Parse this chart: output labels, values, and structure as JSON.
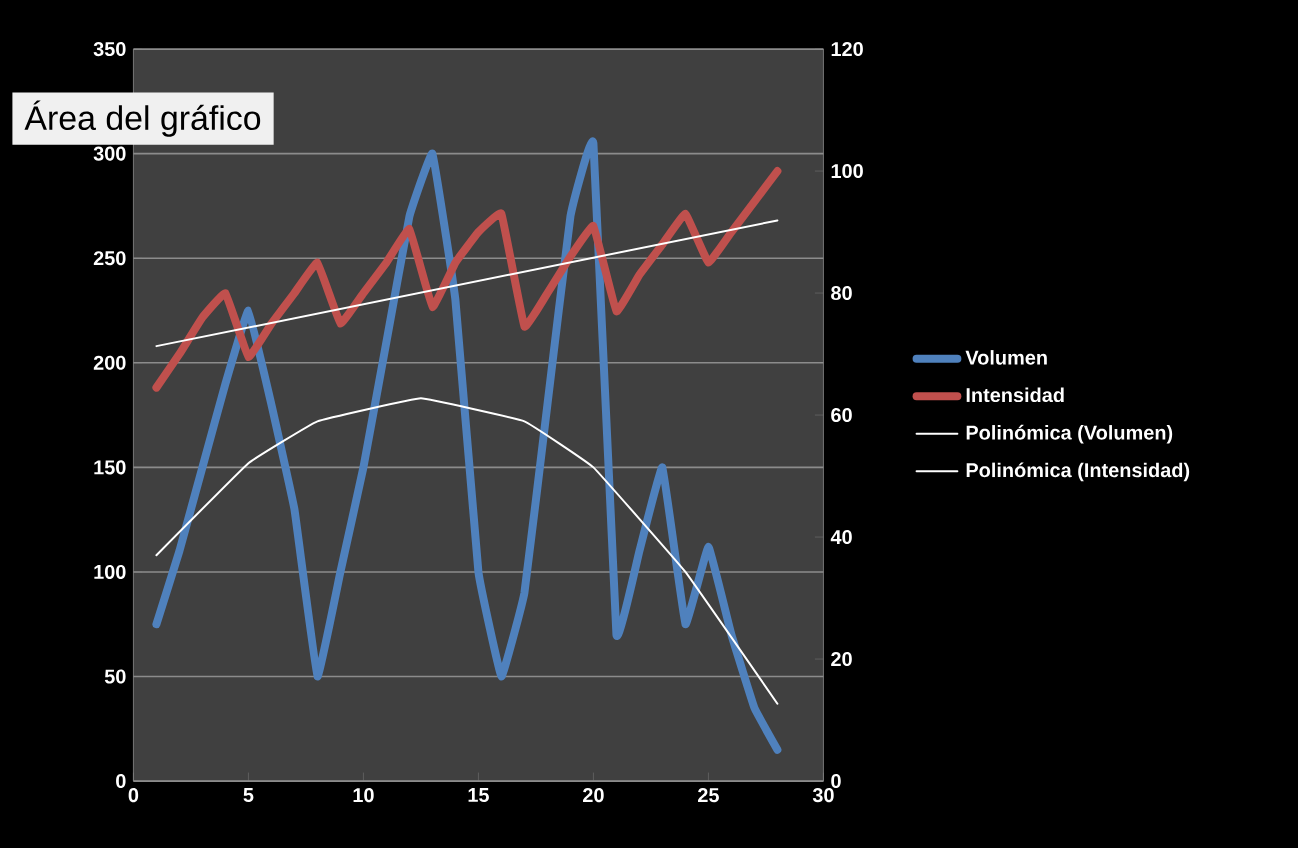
{
  "chart_data": {
    "type": "line",
    "x": [
      1,
      2,
      3,
      4,
      5,
      6,
      7,
      8,
      9,
      10,
      11,
      12,
      13,
      14,
      15,
      16,
      17,
      18,
      19,
      20,
      21,
      22,
      23,
      24,
      25,
      26,
      27,
      28
    ],
    "series": [
      {
        "name": "Volumen",
        "color": "#4f81bd",
        "values": [
          75,
          110,
          150,
          190,
          225,
          180,
          130,
          50,
          100,
          150,
          210,
          270,
          300,
          230,
          100,
          50,
          90,
          180,
          270,
          305,
          70,
          110,
          150,
          75,
          112,
          70,
          35,
          15
        ]
      },
      {
        "name": "Intensidad",
        "color": "#c0504d",
        "axis": "y2",
        "values": [
          64.5,
          70,
          76,
          80,
          69.5,
          75,
          80,
          85,
          75,
          80,
          85,
          90.5,
          77.7,
          85,
          90,
          93,
          74.5,
          80,
          86,
          91,
          77,
          83,
          88,
          93,
          85,
          90,
          95,
          100
        ]
      },
      {
        "name": "Polinómica  (Volumen)",
        "color": "#ffffff",
        "x": [
          1,
          5,
          8,
          12.5,
          17,
          20,
          24,
          28
        ],
        "values": [
          108,
          152,
          172,
          183,
          172,
          150,
          100,
          37
        ]
      },
      {
        "name": "Polinómica  (Intensidad)",
        "color": "#ffffff",
        "axis": "y2",
        "x": [
          1,
          28
        ],
        "values": [
          71.3,
          91.9
        ]
      }
    ],
    "xlim": [
      0,
      30
    ],
    "xticks": [
      0,
      5,
      10,
      15,
      20,
      25,
      30
    ],
    "ylim": [
      0,
      350
    ],
    "yticks": [
      0,
      50,
      100,
      150,
      200,
      250,
      300,
      350
    ],
    "y2lim": [
      0,
      120
    ],
    "y2ticks": [
      0,
      20,
      40,
      60,
      80,
      100,
      120
    ],
    "grid": "y",
    "legend": "right",
    "marker": "none",
    "line_style": "solid",
    "annotations": [
      "Área del gráfico"
    ]
  }
}
